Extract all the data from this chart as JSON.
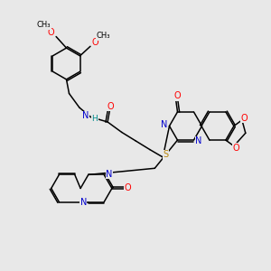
{
  "bg": "#e8e8e8",
  "C": "#000000",
  "N": "#0000cd",
  "O": "#ff0000",
  "S": "#b8860b",
  "H_col": "#008b8b",
  "lw": 1.1,
  "fs": 6.5,
  "xlim": [
    0,
    10
  ],
  "ylim": [
    0,
    10
  ]
}
